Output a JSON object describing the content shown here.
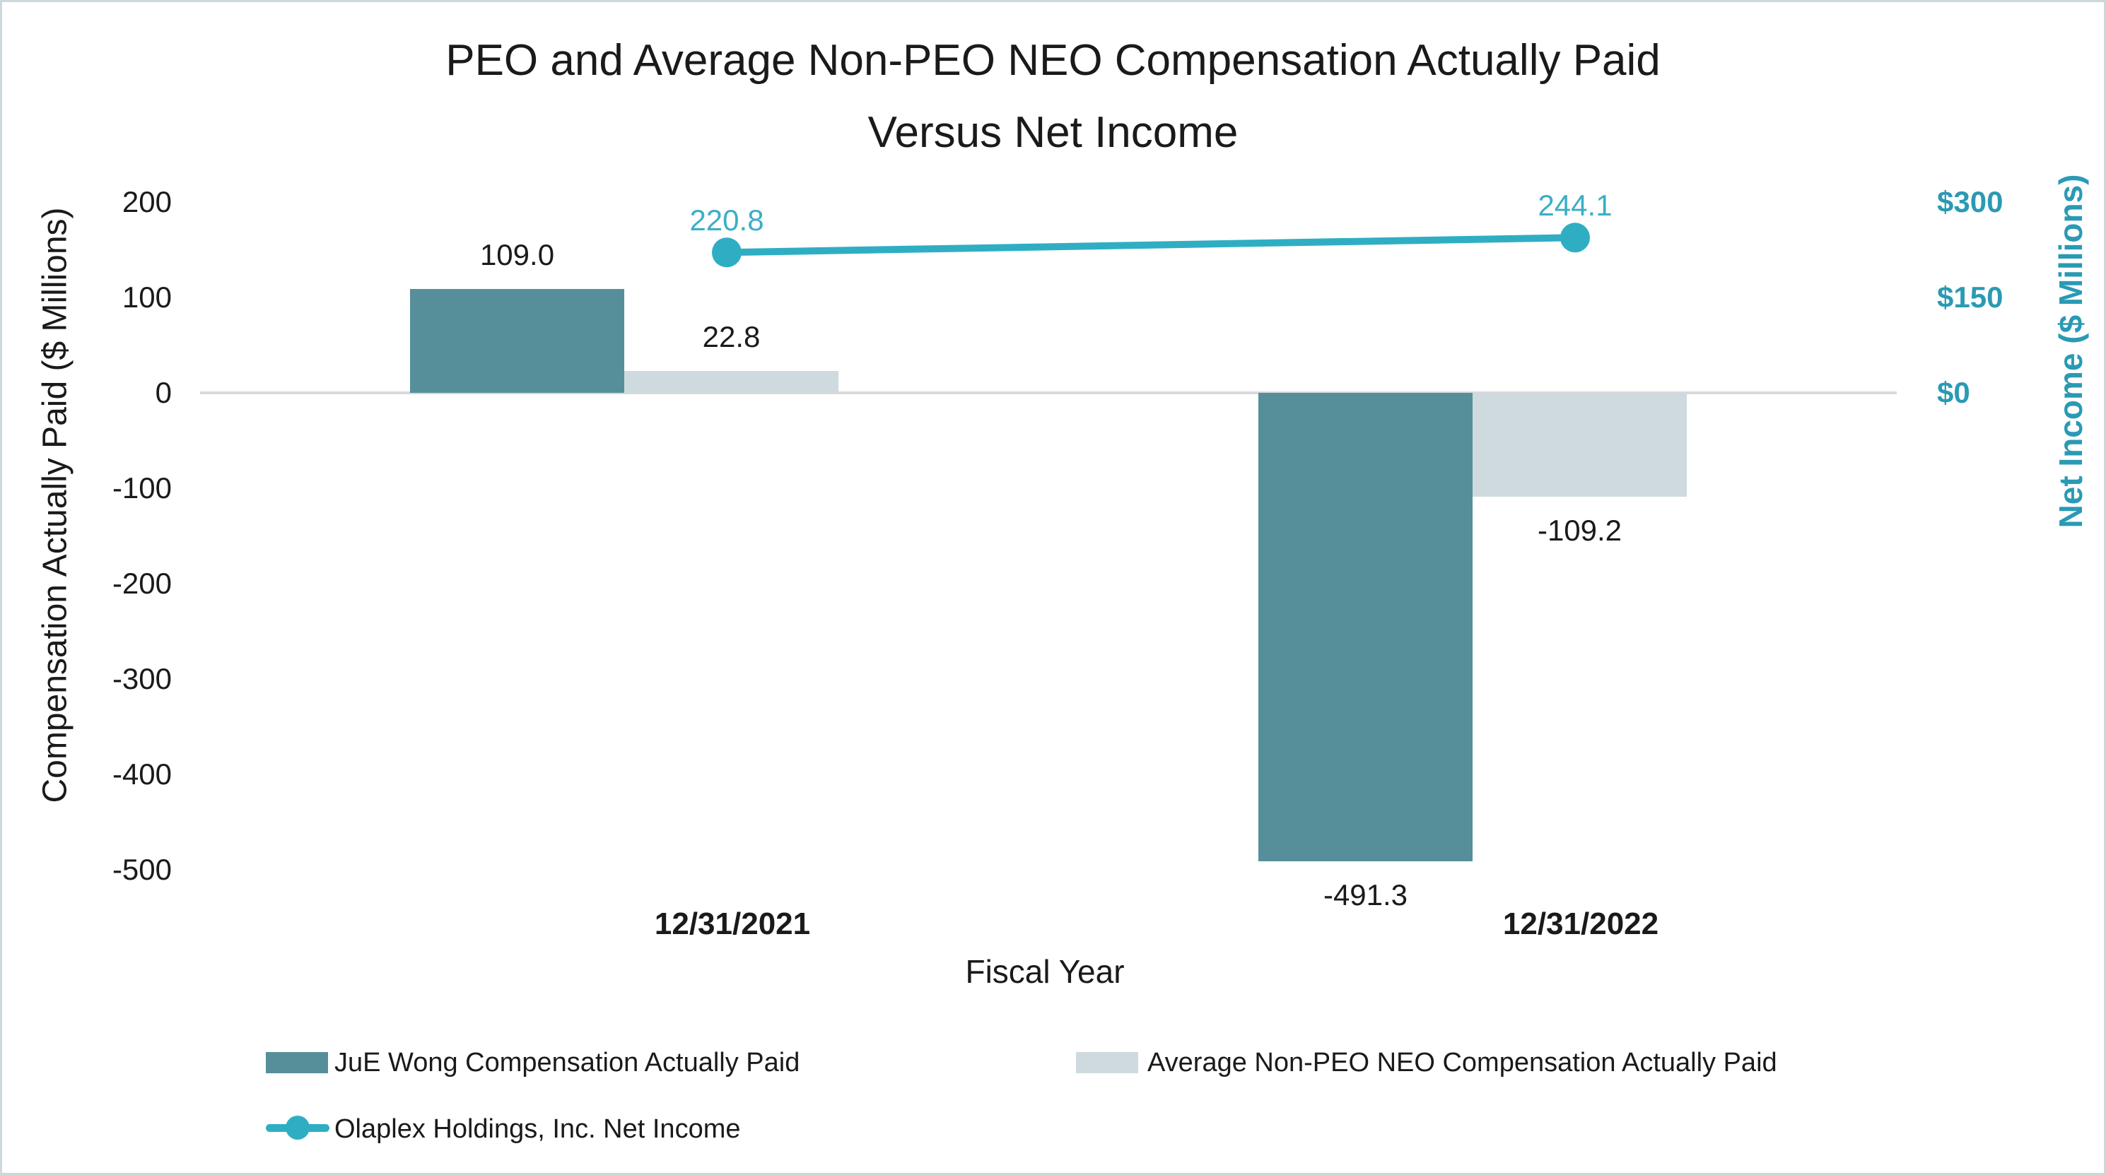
{
  "title": {
    "line1": "PEO and Average Non-PEO NEO Compensation Actually Paid",
    "line2": "Versus Net Income"
  },
  "chart_data": {
    "type": "combo-bar-line",
    "grid": false,
    "legend_position": "bottom",
    "categories": [
      "12/31/2021",
      "12/31/2022"
    ],
    "series": [
      {
        "name": "JuE Wong Compensation Actually Paid",
        "type": "bar",
        "axis": "left",
        "values": [
          109.0,
          -491.3
        ],
        "labels": [
          "109.0",
          "-491.3"
        ],
        "color": "#568F9A"
      },
      {
        "name": "Average Non-PEO NEO Compensation Actually Paid",
        "type": "bar",
        "axis": "left",
        "values": [
          22.8,
          -109.2
        ],
        "labels": [
          "22.8",
          "-109.2"
        ],
        "color": "#CEDADE"
      },
      {
        "name": "Olaplex Holdings, Inc. Net Income",
        "type": "line",
        "axis": "right",
        "values": [
          220.8,
          244.1
        ],
        "labels": [
          "220.8",
          "244.1"
        ],
        "color": "#2FAEC3",
        "label_color": "#3BAEC6"
      }
    ],
    "left_axis": {
      "title": "Compensation Actually Paid ($ Millions)",
      "ticks": [
        "200",
        "100",
        "0",
        "-100",
        "-200",
        "-300",
        "-400",
        "-500"
      ],
      "tick_values": [
        200,
        100,
        0,
        -100,
        -200,
        -300,
        -400,
        -500
      ],
      "range": [
        -500,
        200
      ]
    },
    "right_axis": {
      "title": "Net Income ($ Millions)",
      "ticks": [
        "$300",
        "$150",
        "$0"
      ],
      "tick_values": [
        300,
        150,
        0
      ],
      "range": [
        0,
        300
      ],
      "color": "#2A9AB4"
    },
    "x_axis": {
      "title": "Fiscal Year"
    },
    "colors": {
      "zero_line": "#D9D9D9",
      "border": "#CCD8DC",
      "text": "#1A1A1A"
    }
  }
}
